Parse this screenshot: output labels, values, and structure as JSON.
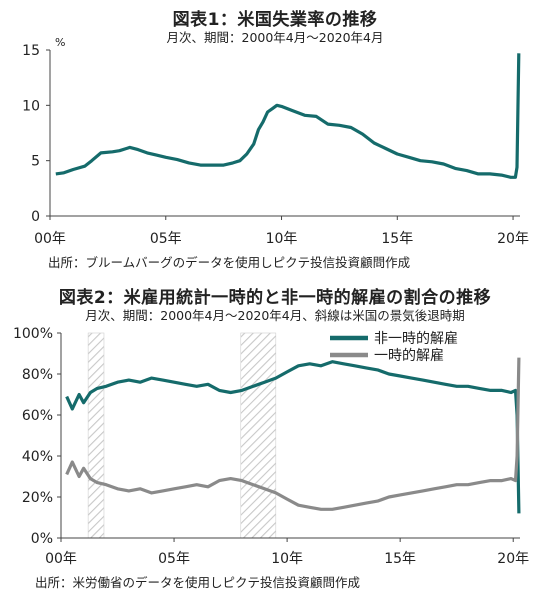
{
  "chart1": {
    "title": "図表1：米国失業率の推移",
    "subtitle": "月次、期間：2000年4月～2020年4月",
    "source": "出所：ブルームバーグのデータを使用しピクテ投信投資顧問作成"
  },
  "chart2": {
    "title": "図表2：米雇用統計一時的と非一時的解雇の割合の推移",
    "subtitle": "月次、期間：2000年4月～2020年4月、斜線は米国の景気後退時期",
    "source": "出所：米労働省のデータを使用しピクテ投信投資顧問作成"
  },
  "chart_data": [
    {
      "type": "line",
      "title": "図表1：米国失業率の推移",
      "subtitle": "月次、期間：2000年4月～2020年4月",
      "ylabel": "%",
      "x_unit": "year",
      "xlim": [
        2000,
        2020.3
      ],
      "ylim": [
        0,
        15
      ],
      "yticks": [
        0,
        5,
        10,
        15
      ],
      "xticks": [
        {
          "x": 2000,
          "label": "00年"
        },
        {
          "x": 2005,
          "label": "05年"
        },
        {
          "x": 2010,
          "label": "10年"
        },
        {
          "x": 2015,
          "label": "15年"
        },
        {
          "x": 2020,
          "label": "20年"
        }
      ],
      "color": "#156b6b",
      "series": [
        {
          "x": [
            2000.25,
            2000.6,
            2001.0,
            2001.5,
            2001.8,
            2002.2,
            2002.7,
            2003.0,
            2003.45,
            2003.8,
            2004.2,
            2004.6,
            2005.0,
            2005.5,
            2006.0,
            2006.5,
            2007.0,
            2007.5,
            2007.9,
            2008.2,
            2008.5,
            2008.8,
            2009.0,
            2009.2,
            2009.4,
            2009.6,
            2009.8,
            2010.0,
            2010.5,
            2011.0,
            2011.5,
            2012.0,
            2012.5,
            2013.0,
            2013.5,
            2014.0,
            2014.5,
            2015.0,
            2015.5,
            2016.0,
            2016.5,
            2017.0,
            2017.5,
            2018.0,
            2018.5,
            2019.0,
            2019.5,
            2019.9,
            2020.1,
            2020.17,
            2020.25
          ],
          "y": [
            3.8,
            3.9,
            4.2,
            4.5,
            5.0,
            5.7,
            5.8,
            5.9,
            6.2,
            6.0,
            5.7,
            5.5,
            5.3,
            5.1,
            4.8,
            4.6,
            4.6,
            4.6,
            4.8,
            5.0,
            5.6,
            6.5,
            7.8,
            8.5,
            9.4,
            9.7,
            10.0,
            9.9,
            9.5,
            9.1,
            9.0,
            8.3,
            8.2,
            8.0,
            7.4,
            6.6,
            6.1,
            5.6,
            5.3,
            5.0,
            4.9,
            4.7,
            4.3,
            4.1,
            3.8,
            3.8,
            3.7,
            3.5,
            3.5,
            4.4,
            14.7
          ]
        }
      ]
    },
    {
      "type": "line",
      "title": "図表2：米雇用統計一時的と非一時的解雇の割合の推移",
      "subtitle": "月次、期間：2000年4月～2020年4月、斜線は米国の景気後退時期",
      "x_unit": "year",
      "xlim": [
        2000,
        2020.3
      ],
      "ylim": [
        0,
        100
      ],
      "yticks": [
        {
          "y": 0,
          "label": "0%"
        },
        {
          "y": 20,
          "label": "20%"
        },
        {
          "y": 40,
          "label": "40%"
        },
        {
          "y": 60,
          "label": "60%"
        },
        {
          "y": 80,
          "label": "80%"
        },
        {
          "y": 100,
          "label": "100%"
        }
      ],
      "xticks": [
        {
          "x": 2000,
          "label": "00年"
        },
        {
          "x": 2005,
          "label": "05年"
        },
        {
          "x": 2010,
          "label": "10年"
        },
        {
          "x": 2015,
          "label": "15年"
        },
        {
          "x": 2020,
          "label": "20年"
        }
      ],
      "recessions": [
        [
          2001.2,
          2001.9
        ],
        [
          2007.95,
          2009.5
        ]
      ],
      "legend_position": "top-right",
      "series": [
        {
          "name": "非一時的解雇",
          "color": "#156b6b",
          "x": [
            2000.25,
            2000.5,
            2000.8,
            2001.0,
            2001.3,
            2001.6,
            2002.0,
            2002.5,
            2003.0,
            2003.5,
            2004.0,
            2004.5,
            2005.0,
            2005.5,
            2006.0,
            2006.5,
            2007.0,
            2007.5,
            2008.0,
            2008.5,
            2009.0,
            2009.5,
            2010.0,
            2010.5,
            2011.0,
            2011.5,
            2012.0,
            2012.5,
            2013.0,
            2013.5,
            2014.0,
            2014.5,
            2015.0,
            2015.5,
            2016.0,
            2016.5,
            2017.0,
            2017.5,
            2018.0,
            2018.5,
            2019.0,
            2019.5,
            2019.9,
            2020.1,
            2020.17,
            2020.25
          ],
          "y": [
            69,
            63,
            70,
            66,
            71,
            73,
            74,
            76,
            77,
            76,
            78,
            77,
            76,
            75,
            74,
            75,
            72,
            71,
            72,
            74,
            76,
            78,
            81,
            84,
            85,
            84,
            86,
            85,
            84,
            83,
            82,
            80,
            79,
            78,
            77,
            76,
            75,
            74,
            74,
            73,
            72,
            72,
            71,
            72,
            60,
            12
          ]
        },
        {
          "name": "一時的解雇",
          "color": "#8a8a8a",
          "x": [
            2000.25,
            2000.5,
            2000.8,
            2001.0,
            2001.3,
            2001.6,
            2002.0,
            2002.5,
            2003.0,
            2003.5,
            2004.0,
            2004.5,
            2005.0,
            2005.5,
            2006.0,
            2006.5,
            2007.0,
            2007.5,
            2008.0,
            2008.5,
            2009.0,
            2009.5,
            2010.0,
            2010.5,
            2011.0,
            2011.5,
            2012.0,
            2012.5,
            2013.0,
            2013.5,
            2014.0,
            2014.5,
            2015.0,
            2015.5,
            2016.0,
            2016.5,
            2017.0,
            2017.5,
            2018.0,
            2018.5,
            2019.0,
            2019.5,
            2019.9,
            2020.1,
            2020.17,
            2020.25
          ],
          "y": [
            31,
            37,
            30,
            34,
            29,
            27,
            26,
            24,
            23,
            24,
            22,
            23,
            24,
            25,
            26,
            25,
            28,
            29,
            28,
            26,
            24,
            22,
            19,
            16,
            15,
            14,
            14,
            15,
            16,
            17,
            18,
            20,
            21,
            22,
            23,
            24,
            25,
            26,
            26,
            27,
            28,
            28,
            29,
            28,
            40,
            88
          ]
        }
      ]
    }
  ]
}
